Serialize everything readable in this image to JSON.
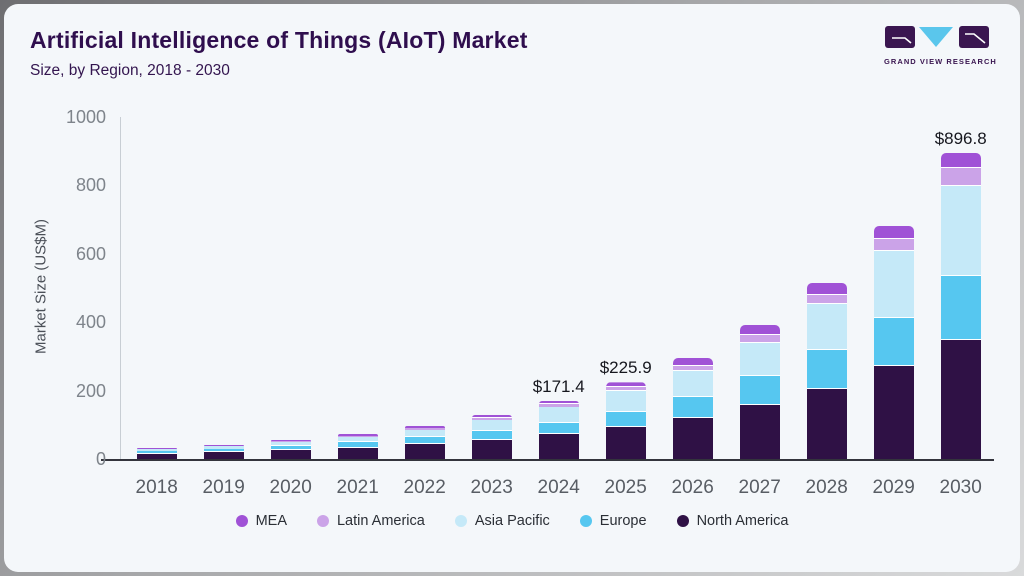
{
  "header": {
    "title": "Artificial Intelligence of Things (AIoT) Market",
    "subtitle": "Size, by Region, 2018 - 2030",
    "logo_text": "GRAND VIEW RESEARCH"
  },
  "chart_data": {
    "type": "bar",
    "stacked": true,
    "title": "Artificial Intelligence of Things (AIoT) Market Size, by Region, 2018 - 2030",
    "xlabel": "",
    "ylabel": "Market Size (US$M)",
    "ylim": [
      0,
      1000
    ],
    "yticks": [
      0,
      200,
      400,
      600,
      800,
      1000
    ],
    "grid": false,
    "legend_position": "bottom",
    "categories": [
      "2018",
      "2019",
      "2020",
      "2021",
      "2022",
      "2023",
      "2024",
      "2025",
      "2026",
      "2027",
      "2028",
      "2029",
      "2030"
    ],
    "series": [
      {
        "name": "North America",
        "color": "#2f1145",
        "values": [
          16,
          20.5,
          26.5,
          34,
          44,
          57,
          75,
          94,
          122,
          160,
          207,
          272,
          350
        ]
      },
      {
        "name": "Europe",
        "color": "#56c7f0",
        "values": [
          8,
          10.5,
          13.5,
          17.5,
          22,
          27.5,
          33,
          45,
          61,
          84,
          112,
          142,
          187
        ]
      },
      {
        "name": "Asia Pacific",
        "color": "#c5e9f8",
        "values": [
          5.5,
          7.5,
          10.5,
          15,
          21.5,
          31,
          46,
          61,
          75,
          97,
          135,
          195,
          263
        ]
      },
      {
        "name": "Latin America",
        "color": "#cba3e8",
        "values": [
          1.5,
          2,
          2.8,
          3.6,
          4.7,
          6,
          7,
          11,
          16,
          22,
          27,
          35,
          52
        ]
      },
      {
        "name": "MEA",
        "color": "#a052d6",
        "values": [
          1.7,
          2.6,
          3.5,
          4.8,
          6.5,
          8.5,
          10.4,
          14.9,
          23.5,
          28.9,
          36.2,
          37.7,
          44.8
        ]
      }
    ],
    "totals": [
      32.7,
      43.1,
      56.8,
      74.9,
      98.7,
      130.0,
      171.4,
      225.9,
      297.5,
      391.9,
      517.2,
      681.7,
      896.8
    ],
    "annotations": [
      {
        "category": "2024",
        "text": "$171.4"
      },
      {
        "category": "2025",
        "text": "$225.9"
      },
      {
        "category": "2030",
        "text": "$896.8"
      }
    ],
    "legend": [
      "MEA",
      "Latin America",
      "Asia Pacific",
      "Europe",
      "North America"
    ]
  },
  "colors": {
    "card_bg": "#f4f7fa",
    "axis_line": "#33343c",
    "brand_purple": "#3a1650",
    "brand_blue": "#5ac6ec"
  }
}
